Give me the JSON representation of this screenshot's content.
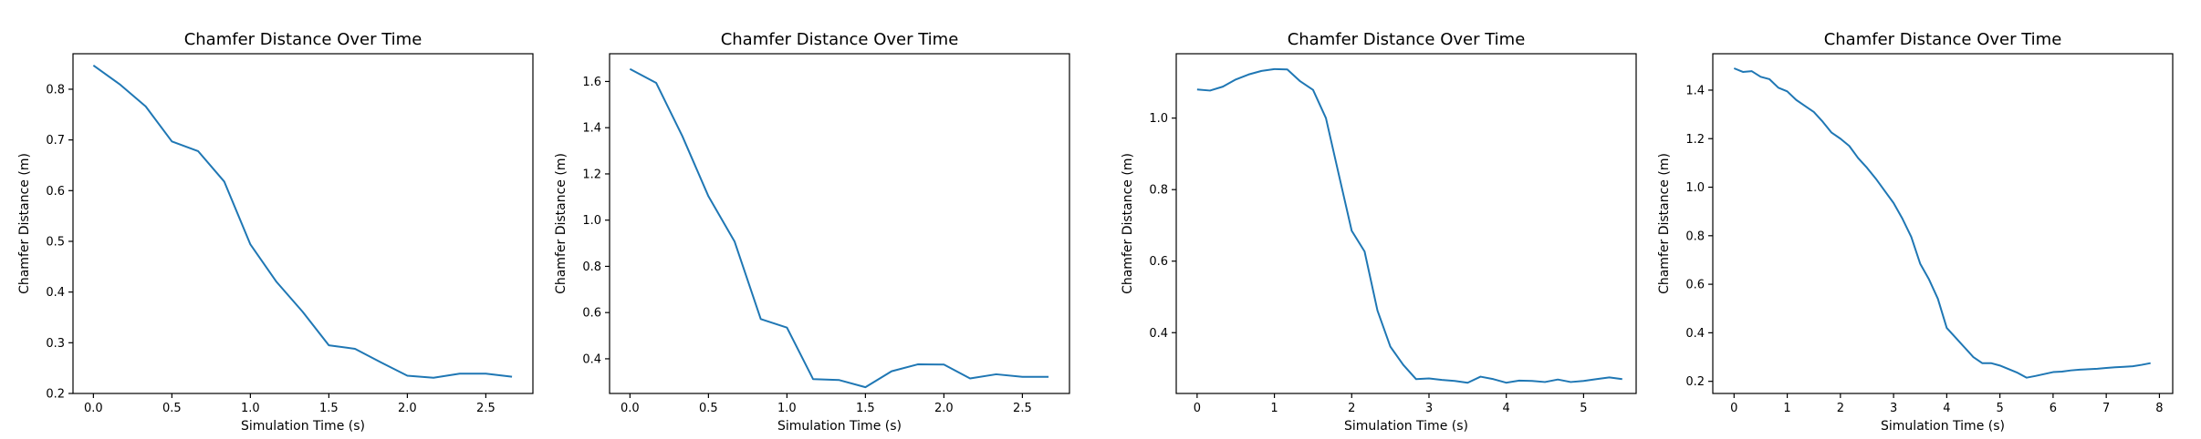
{
  "colors": {
    "line": "#1f77b4",
    "axes": "#000000",
    "background": "#ffffff"
  },
  "chart_data": [
    {
      "type": "line",
      "title": "Chamfer Distance Over Time",
      "xlabel": "Simulation Time (s)",
      "ylabel": "Chamfer Distance (m)",
      "xlim": [
        -0.13,
        2.8
      ],
      "ylim": [
        0.2,
        0.87
      ],
      "xticks": [
        0.0,
        0.5,
        1.0,
        1.5,
        2.0,
        2.5
      ],
      "xtick_labels": [
        "0.0",
        "0.5",
        "1.0",
        "1.5",
        "2.0",
        "2.5"
      ],
      "yticks": [
        0.2,
        0.3,
        0.4,
        0.5,
        0.6,
        0.7,
        0.8
      ],
      "ytick_labels": [
        "0.2",
        "0.3",
        "0.4",
        "0.5",
        "0.6",
        "0.7",
        "0.8"
      ],
      "grid": false,
      "series": [
        {
          "x": [
            0.0,
            0.1667,
            0.3333,
            0.5,
            0.6667,
            0.8333,
            1.0,
            1.1667,
            1.3333,
            1.5,
            1.6667,
            1.8333,
            2.0,
            2.1667,
            2.3333,
            2.5,
            2.6667
          ],
          "y": [
            0.847,
            0.81,
            0.766,
            0.697,
            0.678,
            0.618,
            0.494,
            0.42,
            0.361,
            0.295,
            0.288,
            0.261,
            0.235,
            0.231,
            0.239,
            0.239,
            0.233
          ]
        }
      ]
    },
    {
      "type": "line",
      "title": "Chamfer Distance Over Time",
      "xlabel": "Simulation Time (s)",
      "ylabel": "Chamfer Distance (m)",
      "xlim": [
        -0.13,
        2.8
      ],
      "ylim": [
        0.25,
        1.72
      ],
      "xticks": [
        0.0,
        0.5,
        1.0,
        1.5,
        2.0,
        2.5
      ],
      "xtick_labels": [
        "0.0",
        "0.5",
        "1.0",
        "1.5",
        "2.0",
        "2.5"
      ],
      "yticks": [
        0.4,
        0.6,
        0.8,
        1.0,
        1.2,
        1.4,
        1.6
      ],
      "ytick_labels": [
        "0.4",
        "0.6",
        "0.8",
        "1.0",
        "1.2",
        "1.4",
        "1.6"
      ],
      "grid": false,
      "series": [
        {
          "x": [
            0.0,
            0.1667,
            0.3333,
            0.5,
            0.6667,
            0.8333,
            1.0,
            1.1667,
            1.3333,
            1.5,
            1.6667,
            1.8333,
            2.0,
            2.1667,
            2.3333,
            2.5,
            2.6667
          ],
          "y": [
            1.654,
            1.594,
            1.364,
            1.103,
            0.907,
            0.572,
            0.535,
            0.312,
            0.308,
            0.277,
            0.346,
            0.376,
            0.375,
            0.315,
            0.333,
            0.322,
            0.322
          ]
        }
      ]
    },
    {
      "type": "line",
      "title": "Chamfer Distance Over Time",
      "xlabel": "Simulation Time (s)",
      "ylabel": "Chamfer Distance (m)",
      "xlim": [
        -0.27,
        5.68
      ],
      "ylim": [
        0.23,
        1.18
      ],
      "xticks": [
        0,
        1,
        2,
        3,
        4,
        5
      ],
      "xtick_labels": [
        "0",
        "1",
        "2",
        "3",
        "4",
        "5"
      ],
      "yticks": [
        0.4,
        0.6,
        0.8,
        1.0
      ],
      "ytick_labels": [
        "0.4",
        "0.6",
        "0.8",
        "1.0"
      ],
      "grid": false,
      "series": [
        {
          "x": [
            0.0,
            0.1667,
            0.3333,
            0.5,
            0.6667,
            0.8333,
            1.0,
            1.1667,
            1.3333,
            1.5,
            1.6667,
            1.8333,
            2.0,
            2.1667,
            2.3333,
            2.5,
            2.6667,
            2.8333,
            3.0,
            3.1667,
            3.3333,
            3.5,
            3.6667,
            3.8333,
            4.0,
            4.1667,
            4.3333,
            4.5,
            4.6667,
            4.8333,
            5.0,
            5.1667,
            5.3333,
            5.5
          ],
          "y": [
            1.08,
            1.077,
            1.088,
            1.108,
            1.122,
            1.132,
            1.137,
            1.136,
            1.103,
            1.079,
            1.0,
            0.842,
            0.685,
            0.627,
            0.462,
            0.361,
            0.31,
            0.27,
            0.272,
            0.268,
            0.265,
            0.26,
            0.277,
            0.27,
            0.26,
            0.266,
            0.265,
            0.262,
            0.269,
            0.262,
            0.265,
            0.27,
            0.275,
            0.27
          ]
        }
      ]
    },
    {
      "type": "line",
      "title": "Chamfer Distance Over Time",
      "xlabel": "Simulation Time (s)",
      "ylabel": "Chamfer Distance (m)",
      "xlim": [
        -0.4,
        8.25
      ],
      "ylim": [
        0.15,
        1.55
      ],
      "xticks": [
        0,
        1,
        2,
        3,
        4,
        5,
        6,
        7,
        8
      ],
      "xtick_labels": [
        "0",
        "1",
        "2",
        "3",
        "4",
        "5",
        "6",
        "7",
        "8"
      ],
      "yticks": [
        0.2,
        0.4,
        0.6,
        0.8,
        1.0,
        1.2,
        1.4
      ],
      "ytick_labels": [
        "0.2",
        "0.4",
        "0.6",
        "0.8",
        "1.0",
        "1.2",
        "1.4"
      ],
      "grid": false,
      "series": [
        {
          "x": [
            0.0,
            0.1667,
            0.3333,
            0.5,
            0.6667,
            0.8333,
            1.0,
            1.1667,
            1.3333,
            1.5,
            1.6667,
            1.8333,
            2.0,
            2.1667,
            2.3333,
            2.5,
            2.6667,
            2.8333,
            3.0,
            3.1667,
            3.3333,
            3.5,
            3.6667,
            3.8333,
            4.0,
            4.1667,
            4.3333,
            4.5,
            4.6667,
            4.8333,
            5.0,
            5.1667,
            5.3333,
            5.5,
            5.6667,
            5.8333,
            6.0,
            6.1667,
            6.3333,
            6.5,
            6.6667,
            6.8333,
            7.0,
            7.1667,
            7.3333,
            7.5,
            7.6667,
            7.8333
          ],
          "y": [
            1.49,
            1.475,
            1.478,
            1.455,
            1.445,
            1.41,
            1.395,
            1.36,
            1.335,
            1.31,
            1.27,
            1.225,
            1.2,
            1.17,
            1.12,
            1.08,
            1.035,
            0.985,
            0.935,
            0.87,
            0.795,
            0.685,
            0.62,
            0.54,
            0.42,
            0.38,
            0.34,
            0.3,
            0.275,
            0.275,
            0.265,
            0.25,
            0.235,
            0.215,
            0.222,
            0.23,
            0.238,
            0.24,
            0.245,
            0.248,
            0.25,
            0.252,
            0.255,
            0.258,
            0.26,
            0.262,
            0.268,
            0.275
          ]
        }
      ]
    }
  ]
}
